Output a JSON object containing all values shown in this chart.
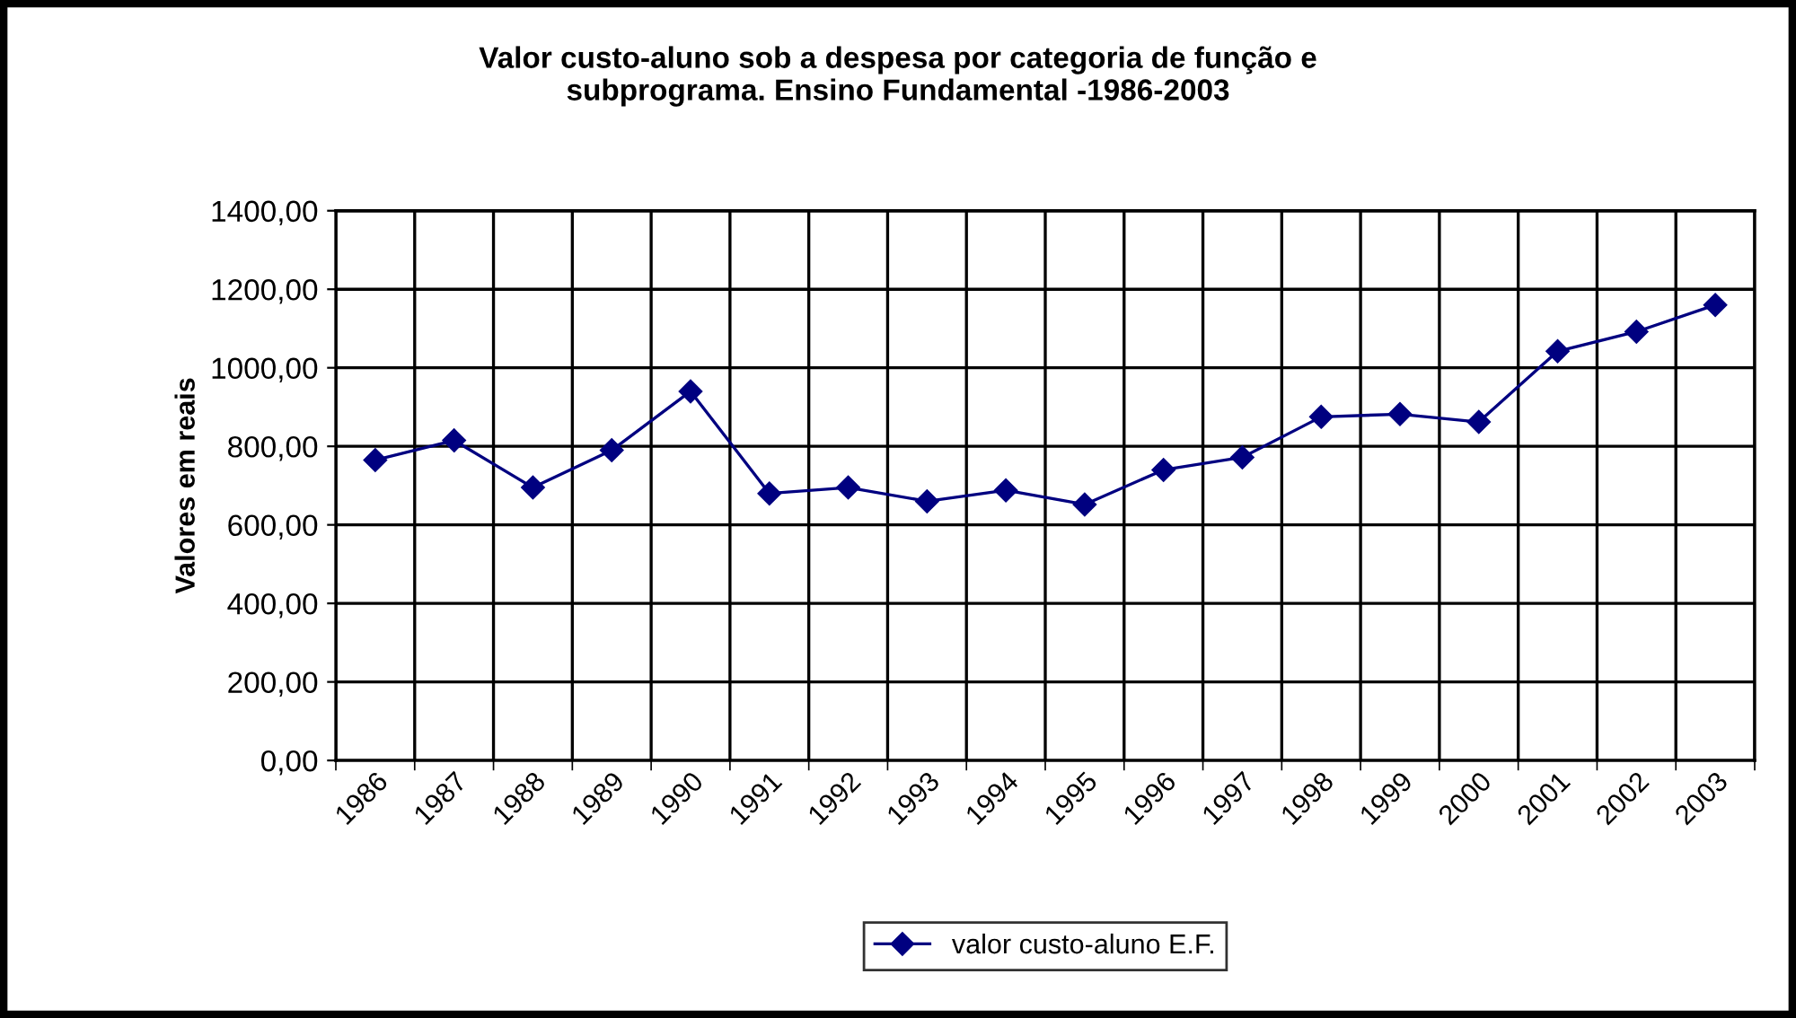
{
  "chart_data": {
    "type": "line",
    "title": "Valor custo-aluno sob a despesa por categoria de função e\nsubprograma. Ensino Fundamental -1986-2003",
    "ylabel": "Valores em reais",
    "categories": [
      "1986",
      "1987",
      "1988",
      "1989",
      "1990",
      "1991",
      "1992",
      "1993",
      "1994",
      "1995",
      "1996",
      "1997",
      "1998",
      "1999",
      "2000",
      "2001",
      "2002",
      "2003"
    ],
    "series": [
      {
        "name": "valor custo-aluno E.F.",
        "color": "#000080",
        "values": [
          765,
          815,
          695,
          790,
          940,
          680,
          695,
          660,
          688,
          652,
          740,
          772,
          875,
          882,
          862,
          1042,
          1092,
          1160
        ]
      }
    ],
    "ylim": [
      0,
      1400
    ],
    "yticks": [
      {
        "value": 0,
        "label": "0,00"
      },
      {
        "value": 200,
        "label": "200,00"
      },
      {
        "value": 400,
        "label": "400,00"
      },
      {
        "value": 600,
        "label": "600,00"
      },
      {
        "value": 800,
        "label": "800,00"
      },
      {
        "value": 1000,
        "label": "1000,00"
      },
      {
        "value": 1200,
        "label": "1200,00"
      },
      {
        "value": 1400,
        "label": "1400,00"
      }
    ],
    "grid": true,
    "legend": "bottom",
    "marker": "diamond",
    "line_style": "solid"
  }
}
